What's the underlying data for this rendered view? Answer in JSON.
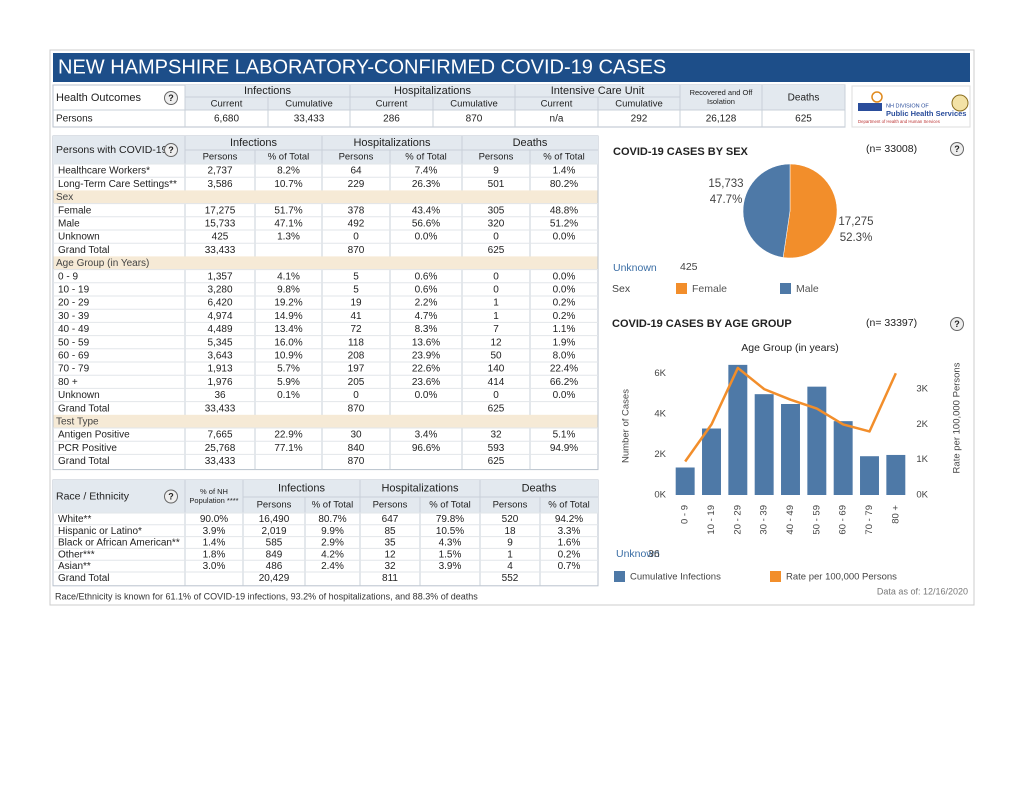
{
  "header": {
    "title": "NEW HAMPSHIRE LABORATORY-CONFIRMED COVID-19 CASES"
  },
  "help_icon": "?",
  "logo": {
    "line1": "NH DIVISION OF",
    "line2": "Public Health Services",
    "line3": "Department of Health and Human Services"
  },
  "health_outcomes": {
    "label": "Health Outcomes",
    "groups": [
      {
        "name": "Infections",
        "columns": [
          "Current",
          "Cumulative"
        ]
      },
      {
        "name": "Hospitalizations",
        "columns": [
          "Current",
          "Cumulative"
        ]
      },
      {
        "name": "Intensive Care Unit",
        "columns": [
          "Current",
          "Cumulative"
        ]
      },
      {
        "name": "Recovered and Off Isolation"
      },
      {
        "name": "Deaths"
      }
    ],
    "rows": [
      {
        "label": "Persons",
        "cells": [
          "6,680",
          "33,433",
          "286",
          "870",
          "n/a",
          "292",
          "26,128",
          "625"
        ]
      }
    ]
  },
  "persons_table": {
    "label": "Persons with COVID-19",
    "groups": [
      {
        "name": "Infections",
        "columns": [
          "Persons",
          "% of Total"
        ]
      },
      {
        "name": "Hospitalizations",
        "columns": [
          "Persons",
          "% of Total"
        ]
      },
      {
        "name": "Deaths",
        "columns": [
          "Persons",
          "% of Total"
        ]
      }
    ],
    "rows": [
      {
        "label": "Healthcare Workers*",
        "cells": [
          "2,737",
          "8.2%",
          "64",
          "7.4%",
          "9",
          "1.4%"
        ]
      },
      {
        "label": "Long-Term Care Settings**",
        "cells": [
          "3,586",
          "10.7%",
          "229",
          "26.3%",
          "501",
          "80.2%"
        ]
      },
      {
        "section": "Sex"
      },
      {
        "label": "Female",
        "cells": [
          "17,275",
          "51.7%",
          "378",
          "43.4%",
          "305",
          "48.8%"
        ]
      },
      {
        "label": "Male",
        "cells": [
          "15,733",
          "47.1%",
          "492",
          "56.6%",
          "320",
          "51.2%"
        ]
      },
      {
        "label": "Unknown",
        "cells": [
          "425",
          "1.3%",
          "0",
          "0.0%",
          "0",
          "0.0%"
        ]
      },
      {
        "label": "Grand Total",
        "cells": [
          "33,433",
          null,
          "870",
          null,
          "625",
          null
        ]
      },
      {
        "section": "Age Group (in Years)"
      },
      {
        "label": "0 - 9",
        "cells": [
          "1,357",
          "4.1%",
          "5",
          "0.6%",
          "0",
          "0.0%"
        ]
      },
      {
        "label": "10 - 19",
        "cells": [
          "3,280",
          "9.8%",
          "5",
          "0.6%",
          "0",
          "0.0%"
        ]
      },
      {
        "label": "20 - 29",
        "cells": [
          "6,420",
          "19.2%",
          "19",
          "2.2%",
          "1",
          "0.2%"
        ]
      },
      {
        "label": "30 - 39",
        "cells": [
          "4,974",
          "14.9%",
          "41",
          "4.7%",
          "1",
          "0.2%"
        ]
      },
      {
        "label": "40 - 49",
        "cells": [
          "4,489",
          "13.4%",
          "72",
          "8.3%",
          "7",
          "1.1%"
        ]
      },
      {
        "label": "50 - 59",
        "cells": [
          "5,345",
          "16.0%",
          "118",
          "13.6%",
          "12",
          "1.9%"
        ]
      },
      {
        "label": "60 - 69",
        "cells": [
          "3,643",
          "10.9%",
          "208",
          "23.9%",
          "50",
          "8.0%"
        ]
      },
      {
        "label": "70 - 79",
        "cells": [
          "1,913",
          "5.7%",
          "197",
          "22.6%",
          "140",
          "22.4%"
        ]
      },
      {
        "label": "80 +",
        "cells": [
          "1,976",
          "5.9%",
          "205",
          "23.6%",
          "414",
          "66.2%"
        ]
      },
      {
        "label": "Unknown",
        "cells": [
          "36",
          "0.1%",
          "0",
          "0.0%",
          "0",
          "0.0%"
        ]
      },
      {
        "label": "Grand Total",
        "cells": [
          "33,433",
          null,
          "870",
          null,
          "625",
          null
        ]
      },
      {
        "section": "Test Type"
      },
      {
        "label": "Antigen Positive",
        "cells": [
          "7,665",
          "22.9%",
          "30",
          "3.4%",
          "32",
          "5.1%"
        ]
      },
      {
        "label": "PCR Positive",
        "cells": [
          "25,768",
          "77.1%",
          "840",
          "96.6%",
          "593",
          "94.9%"
        ]
      },
      {
        "label": "Grand Total",
        "cells": [
          "33,433",
          null,
          "870",
          null,
          "625",
          null
        ]
      }
    ]
  },
  "race_table": {
    "label": "Race / Ethnicity",
    "population_header": "% of NH Population ****",
    "groups": [
      {
        "name": "Infections",
        "columns": [
          "Persons",
          "% of Total"
        ]
      },
      {
        "name": "Hospitalizations",
        "columns": [
          "Persons",
          "% of Total"
        ]
      },
      {
        "name": "Deaths",
        "columns": [
          "Persons",
          "% of Total"
        ]
      }
    ],
    "rows": [
      {
        "label": "White**",
        "cells": [
          "90.0%",
          "16,490",
          "80.7%",
          "647",
          "79.8%",
          "520",
          "94.2%"
        ]
      },
      {
        "label": "Hispanic or Latino*",
        "cells": [
          "3.9%",
          "2,019",
          "9.9%",
          "85",
          "10.5%",
          "18",
          "3.3%"
        ]
      },
      {
        "label": "Black or African American**",
        "cells": [
          "1.4%",
          "585",
          "2.9%",
          "35",
          "4.3%",
          "9",
          "1.6%"
        ]
      },
      {
        "label": "Other***",
        "cells": [
          "1.8%",
          "849",
          "4.2%",
          "12",
          "1.5%",
          "1",
          "0.2%"
        ]
      },
      {
        "label": "Asian**",
        "cells": [
          "3.0%",
          "486",
          "2.4%",
          "32",
          "3.9%",
          "4",
          "0.7%"
        ]
      },
      {
        "label": "Grand Total",
        "cells": [
          null,
          "20,429",
          null,
          "811",
          null,
          "552",
          null
        ]
      }
    ]
  },
  "footnote": "Race/Ethnicity is known for 61.1% of COVID-19 infections, 93.2% of hospitalizations, and 88.3% of deaths",
  "data_as_of": "Data as of:  12/16/2020",
  "chart_data": [
    {
      "type": "pie",
      "title": "COVID-19 CASES BY SEX",
      "n_label": "(n= 33008)",
      "categories": [
        "Female",
        "Male"
      ],
      "values": [
        17275,
        15733
      ],
      "value_labels": [
        "17,275",
        "15,733"
      ],
      "percent_labels": [
        "52.3%",
        "47.7%"
      ],
      "colors": [
        "#f28e2b",
        "#4e79a7"
      ],
      "legend_title": "Sex",
      "unknown_label": "Unknown",
      "unknown_value": 425
    },
    {
      "type": "bar",
      "title": "COVID-19 CASES BY AGE GROUP",
      "n_label": "(n= 33397)",
      "subtitle": "Age Group (in years)",
      "ylabel": "Number of Cases",
      "y2label": "Rate per 100,000 Persons",
      "categories": [
        "0 - 9",
        "10 - 19",
        "20 - 29",
        "30 - 39",
        "40 - 49",
        "50 - 59",
        "60 - 69",
        "70 - 79",
        "80 +"
      ],
      "series": [
        {
          "name": "Cumulative Infections",
          "type": "bar",
          "color": "#4e79a7",
          "values": [
            1357,
            3280,
            6420,
            4974,
            4489,
            5345,
            3643,
            1913,
            1976
          ]
        },
        {
          "name": "Rate per 100,000 Persons",
          "type": "line",
          "axis": "y2",
          "color": "#f28e2b",
          "values": [
            950,
            2000,
            3600,
            3000,
            2700,
            2450,
            2000,
            1800,
            3450
          ]
        }
      ],
      "ylim": [
        0,
        7400
      ],
      "yticks": [
        {
          "value": 0,
          "label": "0K"
        },
        {
          "value": 2000,
          "label": "2K"
        },
        {
          "value": 4000,
          "label": "4K"
        },
        {
          "value": 6000,
          "label": "6K"
        }
      ],
      "y2lim": [
        0,
        4250
      ],
      "y2ticks": [
        {
          "value": 0,
          "label": "0K"
        },
        {
          "value": 1000,
          "label": "1K"
        },
        {
          "value": 2000,
          "label": "2K"
        },
        {
          "value": 3000,
          "label": "3K"
        }
      ],
      "unknown_label": "Unknown",
      "unknown_value": 36
    }
  ]
}
